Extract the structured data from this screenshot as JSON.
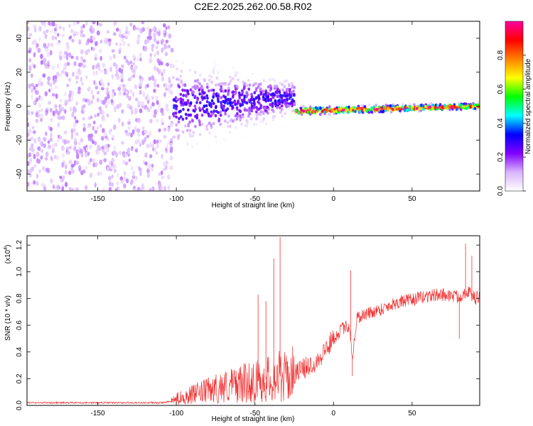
{
  "title": "C2E2.2025.262.00.58.R02",
  "chart_data": [
    {
      "type": "heatmap",
      "xlabel": "Height of straight line (km)",
      "ylabel": "Frequency (Hz)",
      "xlim": [
        -195,
        93
      ],
      "ylim": [
        -50,
        50
      ],
      "xticks": [
        -150,
        -100,
        -50,
        0,
        50
      ],
      "yticks": [
        -40,
        -20,
        0,
        20,
        40
      ],
      "colorbar": {
        "label": "Normalized spectral amplitude",
        "range": [
          0,
          1
        ],
        "ticks": [
          0.0,
          0.2,
          0.4,
          0.6,
          0.8
        ],
        "tick_labels": [
          "0.0",
          "0.2",
          "0.4",
          "0.6",
          "0.8"
        ],
        "colormap": [
          "#ffffff",
          "#d9b3ff",
          "#8000ff",
          "#0000ff",
          "#00ffff",
          "#00ff00",
          "#ffff00",
          "#ff8000",
          "#ff0000",
          "#ff00a0"
        ]
      },
      "regions": [
        {
          "x": [
            -195,
            -103
          ],
          "description_type": "broadband",
          "freq_range": [
            -50,
            50
          ],
          "amplitude": 0.12
        },
        {
          "x": [
            -103,
            -25
          ],
          "description_type": "wide_band",
          "center_freq": [
            0,
            5
          ],
          "halfwidth": [
            20,
            8
          ],
          "amplitude": 0.3
        },
        {
          "x": [
            -25,
            93
          ],
          "description_type": "narrow_band",
          "center_freq": [
            -3,
            0
          ],
          "halfwidth": [
            2,
            1.5
          ],
          "amplitude": 0.95
        }
      ]
    },
    {
      "type": "line",
      "xlabel": "Height of straight line (km)",
      "ylabel": "SNR (10 * v/v)",
      "scale_label": "(x10",
      "scale_exp": "4",
      "scale_close": ")",
      "xlim": [
        -195,
        93
      ],
      "ylim": [
        0,
        1.27
      ],
      "xticks": [
        -150,
        -100,
        -50,
        0,
        50
      ],
      "yticks": [
        0.0,
        0.2,
        0.4,
        0.6,
        0.8,
        1.0,
        1.2
      ],
      "ytick_labels": [
        "0.0",
        "0.2",
        "0.4",
        "0.6",
        "0.8",
        "1.0",
        "1.2"
      ],
      "series_color": "#f03030",
      "x": [
        -195,
        -150,
        -110,
        -103,
        -100,
        -90,
        -80,
        -70,
        -60,
        -50,
        -40,
        -35,
        -30,
        -25,
        -20,
        -15,
        -10,
        -5,
        0,
        5,
        10,
        12,
        15,
        20,
        30,
        40,
        50,
        60,
        70,
        80,
        85,
        90,
        93
      ],
      "y": [
        0.02,
        0.02,
        0.02,
        0.03,
        0.05,
        0.08,
        0.11,
        0.14,
        0.16,
        0.18,
        0.2,
        0.22,
        0.21,
        0.24,
        0.27,
        0.3,
        0.34,
        0.42,
        0.5,
        0.57,
        0.6,
        0.36,
        0.66,
        0.68,
        0.72,
        0.77,
        0.79,
        0.82,
        0.83,
        0.81,
        0.86,
        0.8,
        0.82
      ],
      "spikes": [
        {
          "x": -34,
          "y": 1.26
        },
        {
          "x": -38,
          "y": 1.1
        },
        {
          "x": -48,
          "y": 0.83
        },
        {
          "x": -43,
          "y": 0.78
        },
        {
          "x": 11,
          "y": 1.01
        },
        {
          "x": 12,
          "y": 0.22
        },
        {
          "x": 84,
          "y": 1.21
        },
        {
          "x": 80,
          "y": 0.5
        },
        {
          "x": 88,
          "y": 1.12
        }
      ]
    }
  ]
}
